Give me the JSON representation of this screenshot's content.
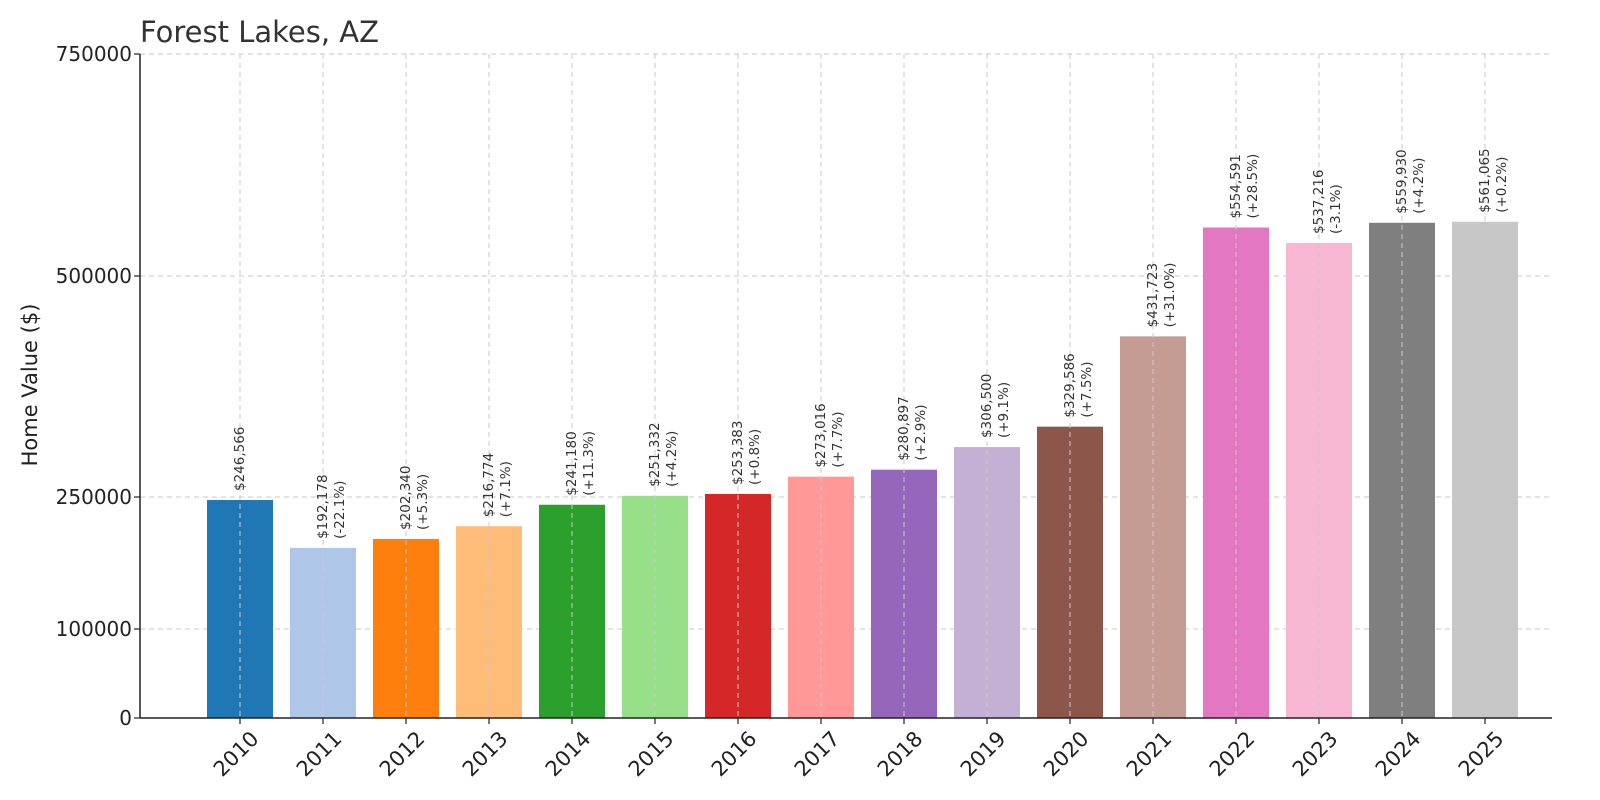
{
  "chart_data": {
    "type": "bar",
    "title": "Forest Lakes, AZ",
    "xlabel": "",
    "ylabel": "Home Value ($)",
    "ylim": [
      0,
      750000
    ],
    "yticks": [
      0,
      100000,
      250000,
      500000,
      750000
    ],
    "ytick_labels": [
      "0",
      "100000",
      "250000",
      "500000",
      "750000"
    ],
    "grid": true,
    "categories": [
      "2010",
      "2011",
      "2012",
      "2013",
      "2014",
      "2015",
      "2016",
      "2017",
      "2018",
      "2019",
      "2020",
      "2021",
      "2022",
      "2023",
      "2024",
      "2025"
    ],
    "values": [
      246566,
      192178,
      202340,
      216774,
      241180,
      251332,
      253383,
      273016,
      280897,
      306500,
      329586,
      431723,
      554591,
      537216,
      559930,
      561065
    ],
    "value_labels": [
      "$246,566",
      "$192,178",
      "$202,340",
      "$216,774",
      "$241,180",
      "$251,332",
      "$253,383",
      "$273,016",
      "$280,897",
      "$306,500",
      "$329,586",
      "$431,723",
      "$554,591",
      "$537,216",
      "$559,930",
      "$561,065"
    ],
    "change_labels": [
      "",
      "(-22.1%)",
      "(+5.3%)",
      "(+7.1%)",
      "(+11.3%)",
      "(+4.2%)",
      "(+0.8%)",
      "(+7.7%)",
      "(+2.9%)",
      "(+9.1%)",
      "(+7.5%)",
      "(+31.0%)",
      "(+28.5%)",
      "(-3.1%)",
      "(+4.2%)",
      "(+0.2%)"
    ],
    "colors": [
      "#1f77b4",
      "#aec7e8",
      "#ff7f0e",
      "#ffbb78",
      "#2ca02c",
      "#98df8a",
      "#d62728",
      "#ff9896",
      "#9467bd",
      "#c5b0d5",
      "#8c564b",
      "#c49c94",
      "#e377c2",
      "#f7b6d2",
      "#7f7f7f",
      "#c7c7c7"
    ]
  }
}
